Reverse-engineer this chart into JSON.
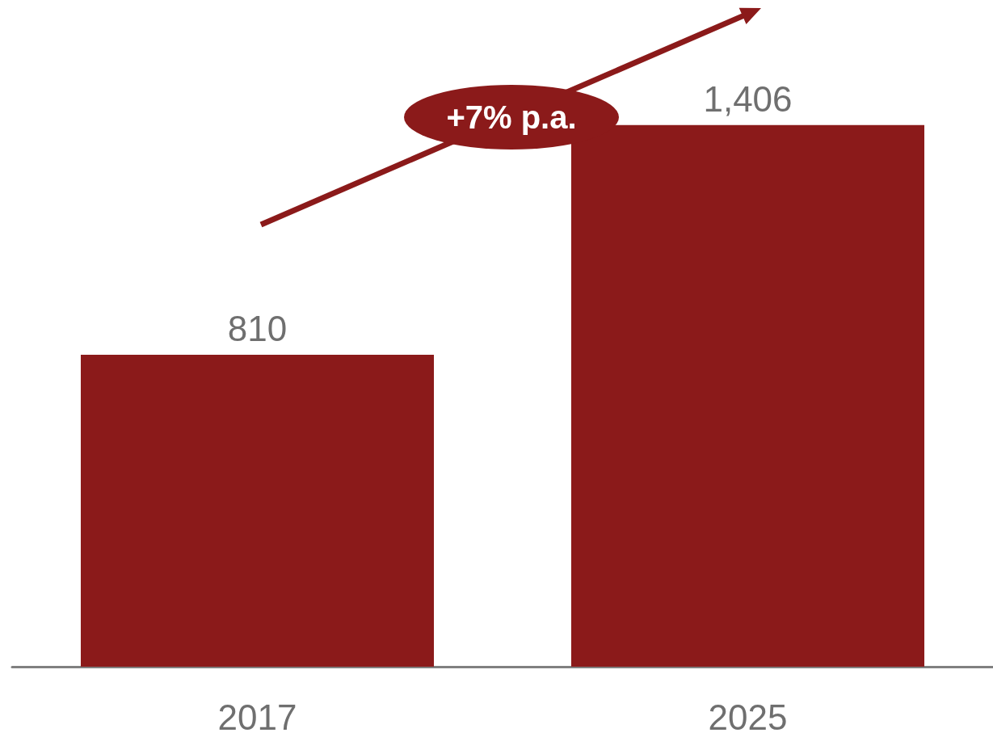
{
  "chart_data": {
    "type": "bar",
    "categories": [
      "2017",
      "2025"
    ],
    "values": [
      810,
      1406
    ],
    "value_labels": [
      "810",
      "1,406"
    ],
    "color": "#8b1a1a",
    "annotations": [
      "+7% p.a."
    ]
  }
}
